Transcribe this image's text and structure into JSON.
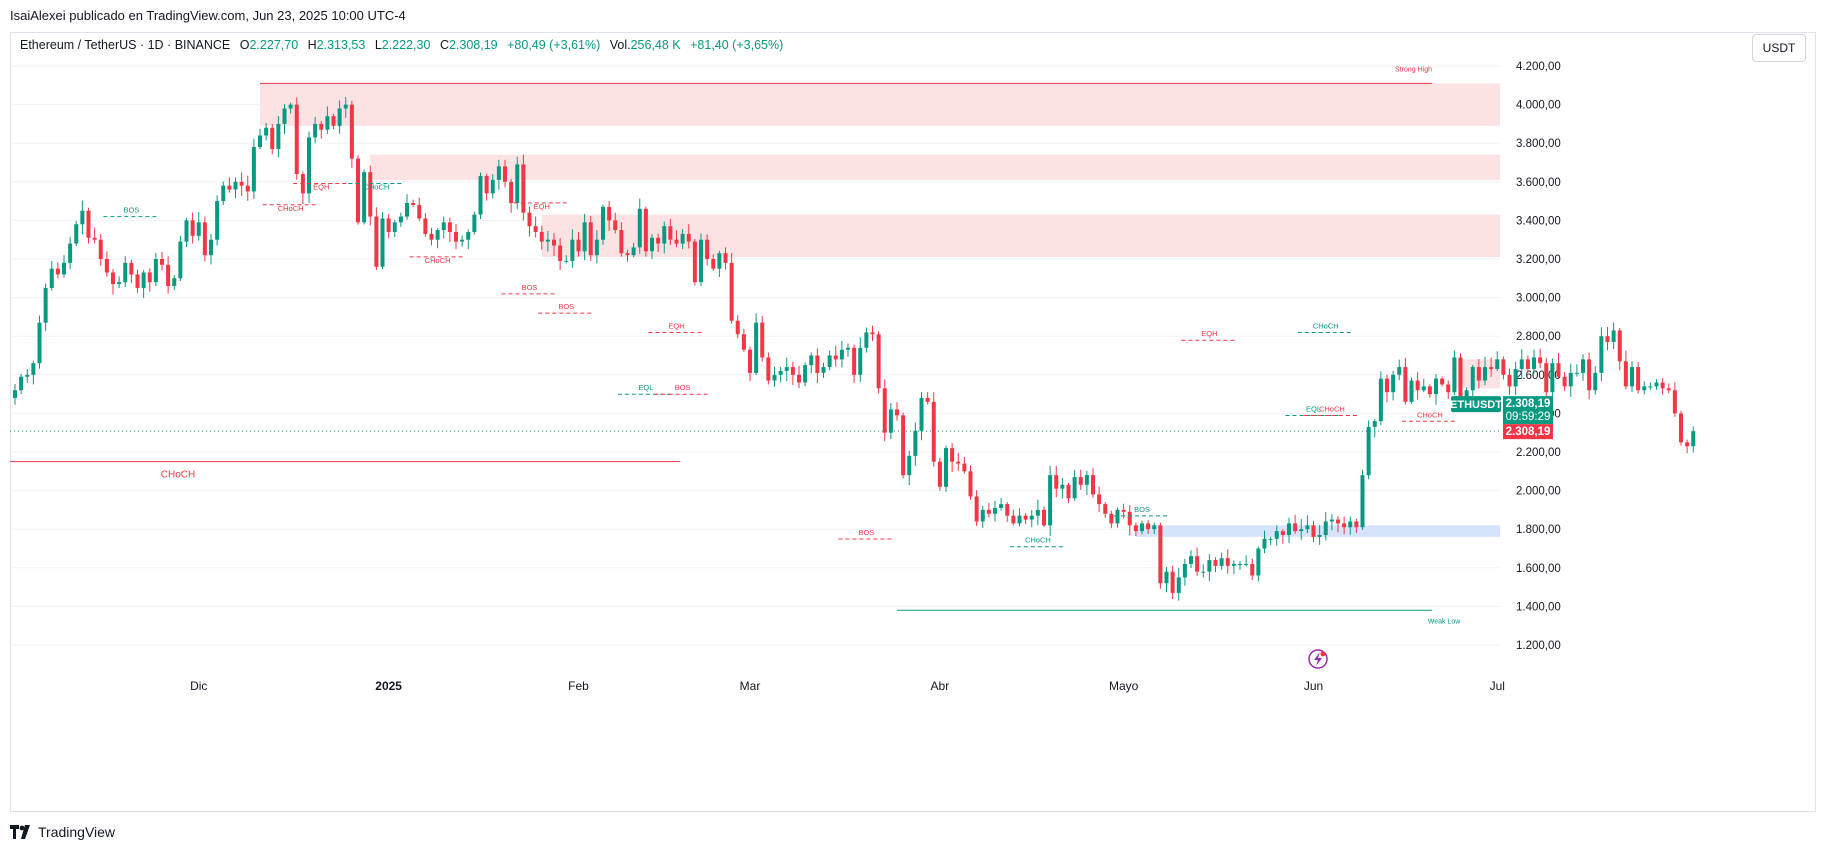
{
  "header": {
    "attribution": "IsaiAlexei publicado en TradingView.com, Jun 23, 2025 10:00 UTC-4"
  },
  "legend": {
    "symbol": "Ethereum / TetherUS · 1D · BINANCE",
    "o_label": "O",
    "o_value": "2.227,70",
    "h_label": "H",
    "h_value": "2.313,53",
    "l_label": "L",
    "l_value": "2.222,30",
    "c_label": "C",
    "c_value": "2.308,19",
    "change": "+80,49 (+3,61%)",
    "vol_label": "Vol.",
    "vol_value": "256,48 K",
    "vol_change": "+81,40 (+3,65%)"
  },
  "currency_button": "USDT",
  "price_tag": {
    "symbol": "ETHUSDT",
    "price": "2.308,19",
    "countdown": "09:59:29",
    "last_price": "2.308,19"
  },
  "footer": {
    "brand": "TradingView"
  },
  "colors": {
    "up": "#089981",
    "down": "#f23645",
    "zone_supply": "#fde2e4",
    "zone_demand": "#d6e4fb",
    "grid": "#f0f3fa"
  },
  "chart_data": {
    "type": "candlestick",
    "ylim": [
      1100,
      4350
    ],
    "y_ticks": [
      "4.200,00",
      "4.000,00",
      "3.800,00",
      "3.600,00",
      "3.400,00",
      "3.200,00",
      "3.000,00",
      "2.800,00",
      "2.600,00",
      "2.400,00",
      "2.200,00",
      "2.000,00",
      "1.800,00",
      "1.600,00",
      "1.400,00",
      "1.200,00"
    ],
    "y_tick_values": [
      4200,
      4000,
      3800,
      3600,
      3400,
      3200,
      3000,
      2800,
      2600,
      2400,
      2200,
      2000,
      1800,
      1600,
      1400,
      1200
    ],
    "x_labels": [
      "Dic",
      "2025",
      "Feb",
      "Mar",
      "Abr",
      "Mayo",
      "Jun",
      "Jul"
    ],
    "x_label_dates": [
      "2024-12-01",
      "2025-01-01",
      "2025-02-01",
      "2025-03-01",
      "2025-04-01",
      "2025-05-01",
      "2025-06-01",
      "2025-07-01"
    ],
    "first_date": "2024-11-01",
    "last_date": "2025-06-23",
    "closes": [
      2520,
      2590,
      2600,
      2660,
      2870,
      3050,
      3150,
      3120,
      3180,
      3280,
      3380,
      3450,
      3310,
      3300,
      3200,
      3130,
      3070,
      3080,
      3180,
      3120,
      3050,
      3130,
      3080,
      3200,
      3170,
      3060,
      3100,
      3290,
      3400,
      3320,
      3390,
      3220,
      3300,
      3500,
      3580,
      3560,
      3600,
      3580,
      3550,
      3780,
      3840,
      3880,
      3770,
      3900,
      3980,
      4000,
      3640,
      3540,
      3830,
      3900,
      3870,
      3940,
      3890,
      3980,
      4000,
      3720,
      3390,
      3650,
      3420,
      3160,
      3410,
      3340,
      3390,
      3420,
      3490,
      3480,
      3410,
      3330,
      3300,
      3350,
      3390,
      3340,
      3290,
      3300,
      3340,
      3430,
      3630,
      3540,
      3610,
      3680,
      3600,
      3490,
      3690,
      3440,
      3370,
      3340,
      3290,
      3300,
      3270,
      3190,
      3190,
      3300,
      3240,
      3390,
      3220,
      3300,
      3470,
      3400,
      3350,
      3230,
      3220,
      3260,
      3460,
      3240,
      3310,
      3280,
      3370,
      3300,
      3280,
      3330,
      3290,
      3080,
      3300,
      3200,
      3150,
      3230,
      3180,
      2880,
      2810,
      2730,
      2610,
      2870,
      2690,
      2570,
      2600,
      2620,
      2640,
      2600,
      2560,
      2650,
      2700,
      2610,
      2640,
      2700,
      2680,
      2730,
      2740,
      2600,
      2740,
      2820,
      2810,
      2530,
      2300,
      2420,
      2390,
      2080,
      2180,
      2310,
      2480,
      2460,
      2150,
      2020,
      2220,
      2150,
      2140,
      2100,
      1970,
      1840,
      1900,
      1880,
      1910,
      1930,
      1870,
      1830,
      1870,
      1850,
      1870,
      1900,
      1820,
      2080,
      2010,
      2030,
      1960,
      2070,
      2030,
      2080,
      1980,
      1930,
      1880,
      1830,
      1900,
      1890,
      1820,
      1790,
      1830,
      1800,
      1820,
      1520,
      1580,
      1470,
      1550,
      1620,
      1660,
      1580,
      1580,
      1640,
      1610,
      1650,
      1610,
      1620,
      1620,
      1620,
      1560,
      1700,
      1750,
      1750,
      1790,
      1770,
      1830,
      1790,
      1800,
      1820,
      1760,
      1770,
      1840,
      1850,
      1830,
      1810,
      1840,
      1810,
      2080,
      2330,
      2360,
      2580,
      2510,
      2600,
      2640,
      2460,
      2570,
      2520,
      2540,
      2500,
      2580,
      2550,
      2510,
      2690,
      2480,
      2520,
      2640,
      2570,
      2640,
      2630,
      2680,
      2600,
      2540,
      2630,
      2680,
      2630,
      2690,
      2660,
      2510,
      2660,
      2590,
      2540,
      2610,
      2610,
      2680,
      2520,
      2610,
      2800,
      2770,
      2830,
      2670,
      2540,
      2640,
      2520,
      2540,
      2540,
      2560,
      2530,
      2520,
      2400,
      2250,
      2230,
      2308
    ],
    "zones": [
      {
        "kind": "supply",
        "top": 4110,
        "bottom": 3890,
        "label": "Strong High"
      },
      {
        "kind": "supply",
        "top": 3740,
        "bottom": 3610
      },
      {
        "kind": "supply",
        "top": 3430,
        "bottom": 3210
      },
      {
        "kind": "supply",
        "top": 2680,
        "bottom": 2530
      },
      {
        "kind": "demand",
        "top": 1820,
        "bottom": 1760
      }
    ],
    "levels": [
      {
        "price": 2150,
        "label": "CHoCH",
        "color": "#f23645"
      },
      {
        "price": 1380,
        "label": "Weak Low",
        "color": "#089981"
      }
    ],
    "annotations": [
      {
        "text": "BOS",
        "date": "2024-11-20",
        "price": 3440,
        "color": "#089981"
      },
      {
        "text": "EQH",
        "date": "2024-12-21",
        "price": 3560,
        "color": "#f23645"
      },
      {
        "text": "CHoCH",
        "date": "2024-12-30",
        "price": 3560,
        "color": "#089981"
      },
      {
        "text": "CHoCH",
        "date": "2024-12-16",
        "price": 3450,
        "color": "#f23645"
      },
      {
        "text": "CHoCH",
        "date": "2025-01-09",
        "price": 3180,
        "color": "#f23645"
      },
      {
        "text": "EQH",
        "date": "2025-01-26",
        "price": 3460,
        "color": "#f23645"
      },
      {
        "text": "BOS",
        "date": "2025-01-24",
        "price": 3040,
        "color": "#f23645"
      },
      {
        "text": "BOS",
        "date": "2025-01-30",
        "price": 2940,
        "color": "#f23645"
      },
      {
        "text": "EQH",
        "date": "2025-02-17",
        "price": 2840,
        "color": "#f23645"
      },
      {
        "text": "EQL",
        "date": "2025-02-12",
        "price": 2520,
        "color": "#089981"
      },
      {
        "text": "BOS",
        "date": "2025-02-18",
        "price": 2520,
        "color": "#f23645"
      },
      {
        "text": "BOS",
        "date": "2025-03-20",
        "price": 1770,
        "color": "#f23645"
      },
      {
        "text": "CHoCH",
        "date": "2025-04-17",
        "price": 1730,
        "color": "#089981"
      },
      {
        "text": "BOS",
        "date": "2025-05-04",
        "price": 1890,
        "color": "#089981"
      },
      {
        "text": "EQH",
        "date": "2025-05-15",
        "price": 2800,
        "color": "#f23645"
      },
      {
        "text": "CHoCH",
        "date": "2025-06-03",
        "price": 2840,
        "color": "#089981"
      },
      {
        "text": "EQL",
        "date": "2025-06-01",
        "price": 2410,
        "color": "#089981"
      },
      {
        "text": "CHoCH",
        "date": "2025-06-04",
        "price": 2410,
        "color": "#f23645"
      },
      {
        "text": "CHoCH",
        "date": "2025-06-20",
        "price": 2380,
        "color": "#f23645"
      }
    ]
  }
}
